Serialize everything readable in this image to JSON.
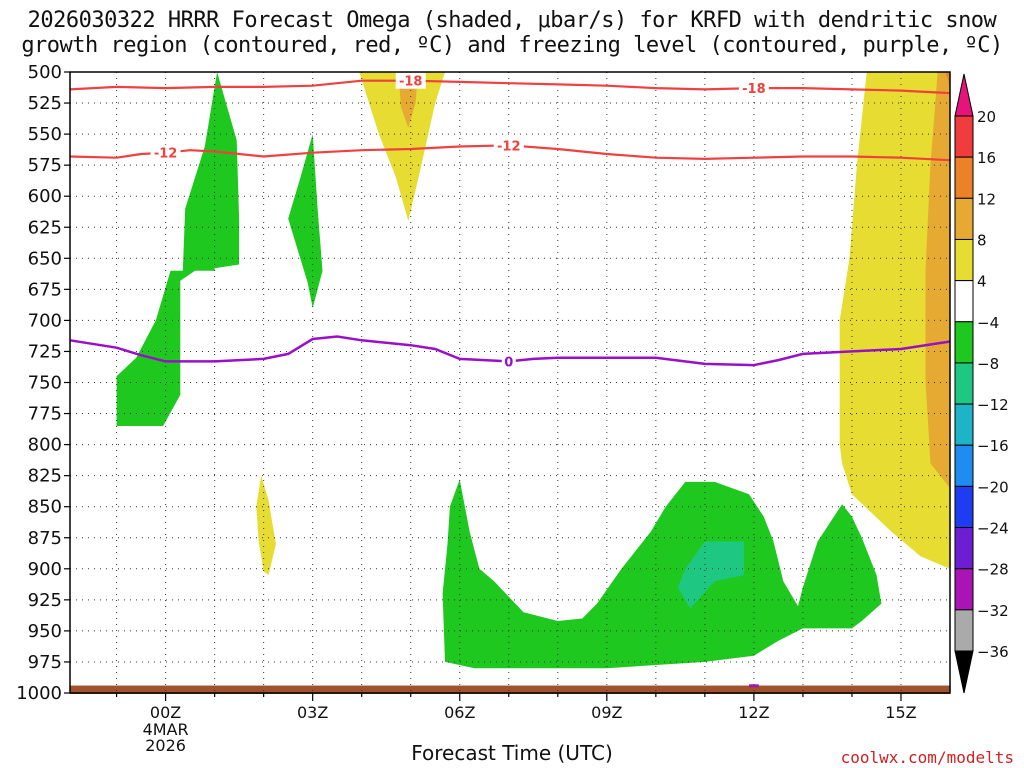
{
  "chart_data": {
    "type": "time-height cross section",
    "title_line1": "2026030322 HRRR Forecast Omega (shaded, μbar/s) for KRFD with dendritic snow",
    "title_line2": "growth region (contoured, red, ºC) and freezing level (contoured, purple, ºC)",
    "xlabel": "Forecast Time (UTC)",
    "credit": "coolwx.com/modelts",
    "x_units": "hours from 2026-03-04 00Z",
    "xlim": [
      -1.95,
      16.0
    ],
    "ylim": [
      1000,
      500
    ],
    "y_ticks": [
      500,
      525,
      550,
      575,
      600,
      625,
      650,
      675,
      700,
      725,
      750,
      775,
      800,
      825,
      850,
      875,
      900,
      925,
      950,
      975,
      1000
    ],
    "x_ticks": [
      {
        "x": 0,
        "label": "00Z"
      },
      {
        "x": 3,
        "label": "03Z"
      },
      {
        "x": 6,
        "label": "06Z"
      },
      {
        "x": 9,
        "label": "09Z"
      },
      {
        "x": 12,
        "label": "12Z"
      },
      {
        "x": 15,
        "label": "15Z"
      }
    ],
    "date_labels": [
      "4MAR",
      "2026"
    ],
    "colorbar": {
      "ticks": [
        "20",
        "16",
        "12",
        "8",
        "4",
        "−4",
        "−8",
        "−12",
        "−16",
        "−20",
        "−24",
        "−28",
        "−32",
        "−36"
      ],
      "bins": [
        {
          "lo": 16,
          "hi": 20,
          "color": "#f03c3c"
        },
        {
          "lo": 12,
          "hi": 16,
          "color": "#ec8228"
        },
        {
          "lo": 8,
          "hi": 12,
          "color": "#e6aa32"
        },
        {
          "lo": 4,
          "hi": 8,
          "color": "#e6dc32"
        },
        {
          "lo": -4,
          "hi": 4,
          "color": "#ffffff"
        },
        {
          "lo": -8,
          "hi": -4,
          "color": "#1ec81e"
        },
        {
          "lo": -12,
          "hi": -8,
          "color": "#1ec882"
        },
        {
          "lo": -16,
          "hi": -12,
          "color": "#1eb4c8"
        },
        {
          "lo": -20,
          "hi": -16,
          "color": "#1e8cf0"
        },
        {
          "lo": -24,
          "hi": -20,
          "color": "#1e3cf0"
        },
        {
          "lo": -28,
          "hi": -24,
          "color": "#6e1ed2"
        },
        {
          "lo": -32,
          "hi": -28,
          "color": "#aa14b4"
        },
        {
          "lo": -36,
          "hi": -32,
          "color": "#aaaaaa"
        }
      ],
      "over_color": "#e6147a",
      "under_color": "#000000"
    },
    "omega_regions": [
      {
        "name": "green-plume-00z",
        "color": "#1ec81e",
        "points": [
          [
            -1.0,
            785
          ],
          [
            -0.05,
            785
          ],
          [
            0.3,
            760
          ],
          [
            0.3,
            668
          ],
          [
            0.6,
            660
          ],
          [
            1.0,
            660
          ],
          [
            1.0,
            658
          ],
          [
            1.5,
            655
          ],
          [
            1.5,
            618
          ],
          [
            1.45,
            555
          ],
          [
            1.05,
            500
          ],
          [
            0.8,
            560
          ],
          [
            0.4,
            610
          ],
          [
            0.35,
            660
          ],
          [
            0.1,
            660
          ],
          [
            -0.2,
            700
          ],
          [
            -0.6,
            730
          ],
          [
            -1.0,
            745
          ]
        ]
      },
      {
        "name": "green-plume-03z",
        "color": "#1ec81e",
        "points": [
          [
            2.5,
            618
          ],
          [
            2.9,
            670
          ],
          [
            3.0,
            690
          ],
          [
            3.2,
            660
          ],
          [
            3.1,
            610
          ],
          [
            3.0,
            550
          ],
          [
            2.75,
            585
          ]
        ]
      },
      {
        "name": "green-blob-low",
        "color": "#1ec81e",
        "points": [
          [
            5.65,
            920
          ],
          [
            5.7,
            975
          ],
          [
            6.3,
            980
          ],
          [
            9.0,
            980
          ],
          [
            11.0,
            975
          ],
          [
            12.0,
            970
          ],
          [
            12.5,
            958
          ],
          [
            13.0,
            948
          ],
          [
            14.0,
            948
          ],
          [
            14.2,
            942
          ],
          [
            14.6,
            928
          ],
          [
            14.5,
            905
          ],
          [
            14.2,
            875
          ],
          [
            14.0,
            858
          ],
          [
            13.8,
            848
          ],
          [
            13.3,
            878
          ],
          [
            13.0,
            915
          ],
          [
            12.9,
            930
          ],
          [
            12.6,
            910
          ],
          [
            12.4,
            878
          ],
          [
            12.2,
            858
          ],
          [
            11.9,
            840
          ],
          [
            11.2,
            830
          ],
          [
            10.6,
            830
          ],
          [
            10.2,
            850
          ],
          [
            9.9,
            870
          ],
          [
            9.3,
            900
          ],
          [
            8.8,
            928
          ],
          [
            8.5,
            940
          ],
          [
            8.0,
            942
          ],
          [
            7.3,
            935
          ],
          [
            6.7,
            910
          ],
          [
            6.4,
            900
          ],
          [
            6.2,
            870
          ],
          [
            6.0,
            828
          ],
          [
            5.8,
            850
          ],
          [
            5.75,
            880
          ]
        ]
      },
      {
        "name": "teal-blob",
        "color": "#1ec882",
        "points": [
          [
            10.45,
            915
          ],
          [
            10.7,
            932
          ],
          [
            11.2,
            910
          ],
          [
            11.8,
            905
          ],
          [
            11.8,
            878
          ],
          [
            11.0,
            878
          ],
          [
            10.6,
            900
          ]
        ]
      },
      {
        "name": "yellow-plume-05z",
        "color": "#e6dc32",
        "points": [
          [
            3.95,
            500
          ],
          [
            4.35,
            550
          ],
          [
            4.7,
            585
          ],
          [
            4.95,
            620
          ],
          [
            5.2,
            578
          ],
          [
            5.5,
            525
          ],
          [
            5.7,
            500
          ]
        ]
      },
      {
        "name": "orange-core-05z",
        "color": "#e6aa32",
        "points": [
          [
            4.75,
            500
          ],
          [
            4.8,
            528
          ],
          [
            4.95,
            545
          ],
          [
            5.1,
            525
          ],
          [
            5.15,
            500
          ]
        ]
      },
      {
        "name": "yellow-drop-02z",
        "color": "#e6dc32",
        "points": [
          [
            1.9,
            878
          ],
          [
            2.0,
            902
          ],
          [
            2.1,
            905
          ],
          [
            2.25,
            880
          ],
          [
            2.1,
            845
          ],
          [
            1.95,
            825
          ],
          [
            1.85,
            850
          ]
        ]
      },
      {
        "name": "yellow-wall-15z",
        "color": "#e6dc32",
        "points": [
          [
            14.3,
            500
          ],
          [
            14.1,
            575
          ],
          [
            13.95,
            650
          ],
          [
            13.75,
            700
          ],
          [
            13.75,
            720
          ],
          [
            13.75,
            800
          ],
          [
            13.8,
            815
          ],
          [
            14.0,
            840
          ],
          [
            14.4,
            855
          ],
          [
            14.8,
            870
          ],
          [
            15.4,
            890
          ],
          [
            16.0,
            900
          ],
          [
            16.0,
            500
          ]
        ]
      },
      {
        "name": "orange-wall-15z",
        "color": "#e6aa32",
        "points": [
          [
            15.75,
            500
          ],
          [
            15.7,
            525
          ],
          [
            15.6,
            575
          ],
          [
            15.5,
            660
          ],
          [
            15.5,
            750
          ],
          [
            15.55,
            780
          ],
          [
            15.6,
            815
          ],
          [
            16.0,
            835
          ],
          [
            16.0,
            500
          ]
        ]
      },
      {
        "name": "orange-edge-15z",
        "color": "#ec8228",
        "points": [
          [
            15.9,
            500
          ],
          [
            16.0,
            500
          ],
          [
            16.0,
            515
          ],
          [
            15.95,
            505
          ]
        ]
      }
    ],
    "surface_band": {
      "color": "#a0522d",
      "top_hpa": 994,
      "bottom_hpa": 1000
    },
    "dgz_minus18": {
      "color": "#f04040",
      "points": [
        [
          -1.95,
          514
        ],
        [
          -1.0,
          512
        ],
        [
          0.0,
          513
        ],
        [
          1.0,
          512
        ],
        [
          2.0,
          512
        ],
        [
          3.0,
          511
        ],
        [
          4.0,
          507
        ],
        [
          5.0,
          507
        ],
        [
          6.0,
          508
        ],
        [
          7.0,
          509
        ],
        [
          8.0,
          510
        ],
        [
          9.0,
          511
        ],
        [
          10.0,
          513
        ],
        [
          11.0,
          514
        ],
        [
          12.0,
          513
        ],
        [
          13.0,
          513
        ],
        [
          14.0,
          514
        ],
        [
          15.0,
          515
        ],
        [
          16.0,
          517
        ]
      ],
      "labels": [
        {
          "x": 5.0,
          "text": "-18"
        },
        {
          "x": 12.0,
          "text": "-18"
        }
      ]
    },
    "dgz_minus12": {
      "color": "#f04040",
      "points": [
        [
          -1.95,
          568
        ],
        [
          -1.0,
          569
        ],
        [
          -0.5,
          566
        ],
        [
          0.0,
          565
        ],
        [
          0.5,
          563
        ],
        [
          1.0,
          564
        ],
        [
          2.0,
          568
        ],
        [
          3.0,
          565
        ],
        [
          4.0,
          563
        ],
        [
          5.0,
          562
        ],
        [
          6.0,
          560
        ],
        [
          7.0,
          559
        ],
        [
          8.0,
          562
        ],
        [
          9.0,
          566
        ],
        [
          10.0,
          569
        ],
        [
          11.0,
          570
        ],
        [
          12.0,
          569
        ],
        [
          13.0,
          568
        ],
        [
          14.0,
          568
        ],
        [
          15.0,
          569
        ],
        [
          16.0,
          571
        ]
      ],
      "labels": [
        {
          "x": 0.0,
          "text": "-12"
        },
        {
          "x": 7.0,
          "text": "-12"
        }
      ]
    },
    "freezing_level": {
      "color": "#9a10c8",
      "points": [
        [
          -1.95,
          716
        ],
        [
          -1.0,
          722
        ],
        [
          -0.5,
          728
        ],
        [
          0.0,
          733
        ],
        [
          1.0,
          733
        ],
        [
          2.0,
          731
        ],
        [
          2.5,
          727
        ],
        [
          3.0,
          715
        ],
        [
          3.5,
          713
        ],
        [
          4.0,
          716
        ],
        [
          4.5,
          718
        ],
        [
          5.0,
          720
        ],
        [
          5.5,
          723
        ],
        [
          6.0,
          731
        ],
        [
          7.0,
          733
        ],
        [
          7.5,
          731
        ],
        [
          8.0,
          730
        ],
        [
          9.0,
          730
        ],
        [
          10.0,
          730
        ],
        [
          11.0,
          735
        ],
        [
          12.0,
          736
        ],
        [
          12.5,
          732
        ],
        [
          13.0,
          727
        ],
        [
          14.0,
          725
        ],
        [
          15.0,
          723
        ],
        [
          16.0,
          717
        ]
      ],
      "labels": [
        {
          "x": 7.0,
          "text": "0"
        }
      ]
    }
  }
}
